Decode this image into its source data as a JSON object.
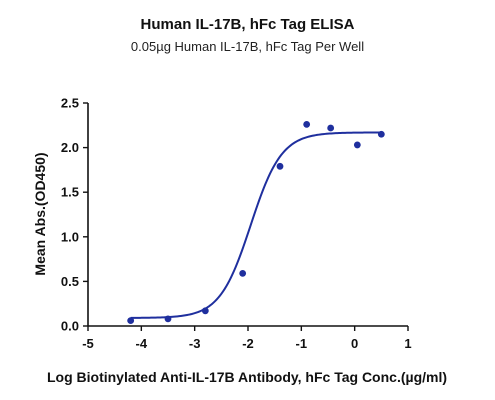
{
  "chart_data": {
    "type": "scatter",
    "title": "Human IL-17B, hFc Tag ELISA",
    "subtitle": "0.05µg Human IL-17B, hFc Tag Per Well",
    "xlabel": "Log Biotinylated Anti-IL-17B Antibody, hFc Tag Conc.(µg/ml)",
    "ylabel": "Mean Abs.(OD450)",
    "xlim": [
      -5,
      1
    ],
    "ylim": [
      0,
      2.5
    ],
    "x_ticks": [
      "-5",
      "-4",
      "-3",
      "-2",
      "-1",
      "0",
      "1"
    ],
    "y_ticks": [
      "0.0",
      "0.5",
      "1.0",
      "1.5",
      "2.0",
      "2.5"
    ],
    "grid": false,
    "series": [
      {
        "points": [
          {
            "x": -4.2,
            "y": 0.06
          },
          {
            "x": -3.5,
            "y": 0.08
          },
          {
            "x": -2.8,
            "y": 0.17
          },
          {
            "x": -2.1,
            "y": 0.59
          },
          {
            "x": -1.4,
            "y": 1.79
          },
          {
            "x": -0.9,
            "y": 2.26
          },
          {
            "x": -0.45,
            "y": 2.22
          },
          {
            "x": 0.05,
            "y": 2.03
          },
          {
            "x": 0.5,
            "y": 2.15
          }
        ],
        "fit": {
          "model": "4PL",
          "bottom": 0.09,
          "top": 2.17,
          "logEC50": -1.95,
          "hill": 1.5,
          "x_range": [
            -4.2,
            0.5
          ]
        }
      }
    ],
    "colors": {
      "series": "#1f2f9e",
      "axis": "#111111"
    }
  }
}
